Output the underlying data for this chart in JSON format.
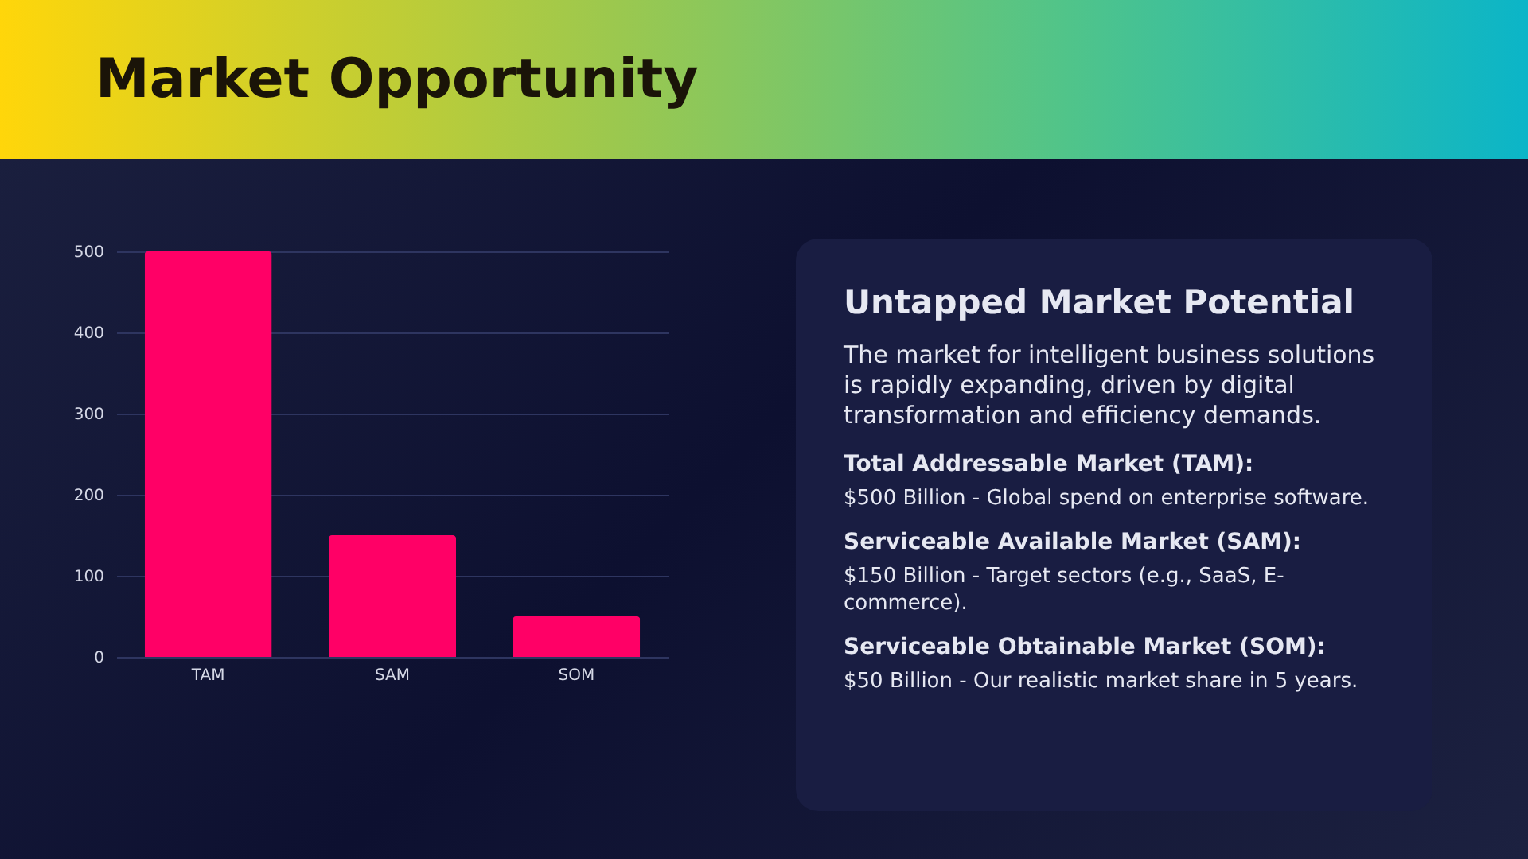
{
  "chart_data": [
    {
      "type": "bar",
      "title": "Market Opportunity",
      "categories": [
        "TAM",
        "SAM",
        "SOM"
      ],
      "values": [
        500,
        150,
        50
      ],
      "color": "#ff0066",
      "ylim": [
        0,
        500
      ],
      "yticks": [
        0,
        100,
        200,
        300,
        400,
        500
      ],
      "grid": "y"
    },
    {
      "type": "other",
      "title": "Untapped Market Potential",
      "subtitle": "The market for intelligent business solutions is rapidly expanding, driven by digital transformation and efficiency demands.",
      "annotations": [
        "Total Addressable Market (TAM):",
        "$500 Billion - Global spend on enterprise software.",
        "Serviceable Available Market (SAM):",
        "$150 Billion - Target sectors (e.g., SaaS, E-commerce).",
        "Serviceable Obtainable Market (SOM):",
        "$50 Billion - Our realistic market share in 5 years."
      ]
    }
  ]
}
